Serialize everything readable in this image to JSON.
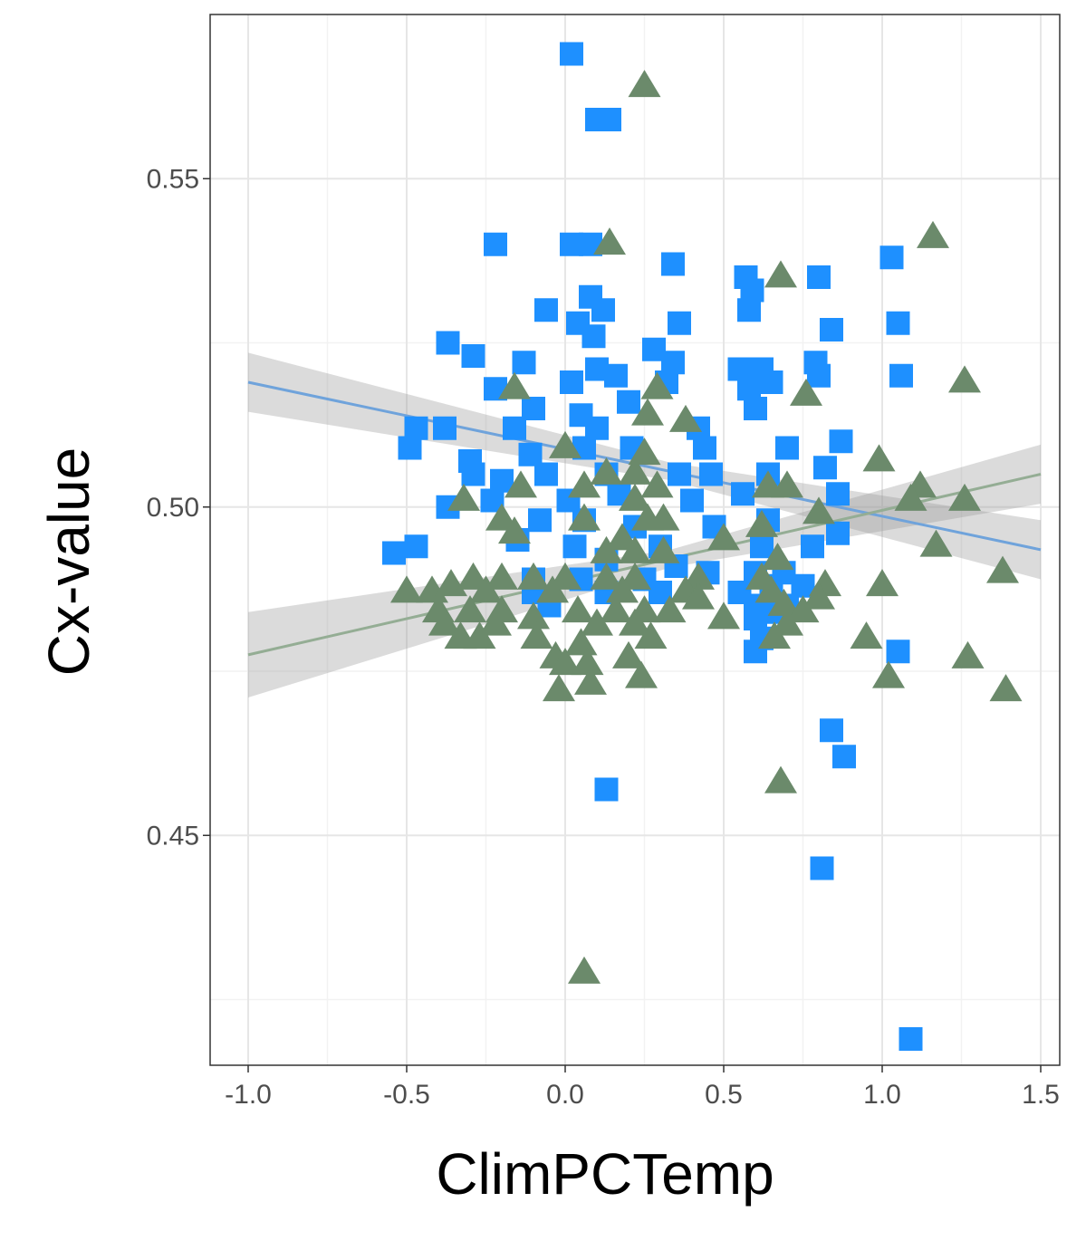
{
  "chart_data": {
    "type": "scatter",
    "title": "",
    "xlabel": "ClimPCTemp",
    "ylabel": "Cx-value",
    "xlim": [
      -1.12,
      1.56
    ],
    "ylim": [
      0.415,
      0.575
    ],
    "x_ticks": [
      -1.0,
      -0.5,
      0.0,
      0.5,
      1.0,
      1.5
    ],
    "x_tick_labels": [
      "-1.0",
      "-0.5",
      "0.0",
      "0.5",
      "1.0",
      "1.5"
    ],
    "y_ticks": [
      0.45,
      0.5,
      0.55
    ],
    "y_tick_labels": [
      "0.45",
      "0.50",
      "0.55"
    ],
    "grid": true,
    "legend": "none",
    "series": [
      {
        "marker": "square",
        "color": "#1E90FF",
        "fit": {
          "x": [
            -1.0,
            1.5
          ],
          "y": [
            0.519,
            0.4935
          ],
          "color": "#6FA3DB",
          "band_halfwidth": [
            0.0045,
            0.0045
          ]
        },
        "points": [
          [
            0.02,
            0.569
          ],
          [
            0.1,
            0.559
          ],
          [
            0.14,
            0.559
          ],
          [
            -0.22,
            0.54
          ],
          [
            0.02,
            0.54
          ],
          [
            0.08,
            0.54
          ],
          [
            0.34,
            0.537
          ],
          [
            0.57,
            0.535
          ],
          [
            0.59,
            0.533
          ],
          [
            0.8,
            0.535
          ],
          [
            1.03,
            0.538
          ],
          [
            1.05,
            0.528
          ],
          [
            0.08,
            0.532
          ],
          [
            0.04,
            0.528
          ],
          [
            -0.06,
            0.53
          ],
          [
            0.12,
            0.53
          ],
          [
            0.36,
            0.528
          ],
          [
            0.09,
            0.526
          ],
          [
            0.58,
            0.53
          ],
          [
            0.84,
            0.527
          ],
          [
            -0.37,
            0.525
          ],
          [
            -0.29,
            0.523
          ],
          [
            -0.13,
            0.522
          ],
          [
            0.1,
            0.521
          ],
          [
            0.28,
            0.524
          ],
          [
            0.34,
            0.522
          ],
          [
            0.55,
            0.521
          ],
          [
            0.62,
            0.521
          ],
          [
            0.79,
            0.522
          ],
          [
            1.06,
            0.52
          ],
          [
            -0.22,
            0.518
          ],
          [
            0.02,
            0.519
          ],
          [
            0.16,
            0.52
          ],
          [
            0.32,
            0.519
          ],
          [
            0.58,
            0.518
          ],
          [
            0.65,
            0.519
          ],
          [
            0.8,
            0.52
          ],
          [
            -0.1,
            0.515
          ],
          [
            0.05,
            0.514
          ],
          [
            0.2,
            0.516
          ],
          [
            -0.47,
            0.512
          ],
          [
            -0.38,
            0.512
          ],
          [
            -0.16,
            0.512
          ],
          [
            0.1,
            0.512
          ],
          [
            0.42,
            0.512
          ],
          [
            0.6,
            0.515
          ],
          [
            -0.49,
            0.509
          ],
          [
            -0.3,
            0.507
          ],
          [
            -0.11,
            0.508
          ],
          [
            0.06,
            0.509
          ],
          [
            0.21,
            0.509
          ],
          [
            0.44,
            0.509
          ],
          [
            0.7,
            0.509
          ],
          [
            0.87,
            0.51
          ],
          [
            -0.29,
            0.505
          ],
          [
            -0.2,
            0.504
          ],
          [
            -0.06,
            0.505
          ],
          [
            0.13,
            0.505
          ],
          [
            0.36,
            0.505
          ],
          [
            0.46,
            0.505
          ],
          [
            0.64,
            0.505
          ],
          [
            0.82,
            0.506
          ],
          [
            -0.37,
            0.5
          ],
          [
            -0.23,
            0.501
          ],
          [
            0.01,
            0.501
          ],
          [
            0.17,
            0.502
          ],
          [
            0.4,
            0.501
          ],
          [
            0.56,
            0.502
          ],
          [
            0.86,
            0.502
          ],
          [
            -0.08,
            0.498
          ],
          [
            0.06,
            0.498
          ],
          [
            0.22,
            0.497
          ],
          [
            0.47,
            0.497
          ],
          [
            0.64,
            0.498
          ],
          [
            0.86,
            0.496
          ],
          [
            -0.54,
            0.493
          ],
          [
            -0.47,
            0.494
          ],
          [
            -0.15,
            0.495
          ],
          [
            0.03,
            0.494
          ],
          [
            0.3,
            0.494
          ],
          [
            0.62,
            0.494
          ],
          [
            0.78,
            0.494
          ],
          [
            0.13,
            0.492
          ],
          [
            0.35,
            0.491
          ],
          [
            0.6,
            0.49
          ],
          [
            0.69,
            0.49
          ],
          [
            0.05,
            0.489
          ],
          [
            0.25,
            0.489
          ],
          [
            -0.1,
            0.489
          ],
          [
            0.45,
            0.49
          ],
          [
            0.65,
            0.488
          ],
          [
            0.75,
            0.488
          ],
          [
            -0.1,
            0.487
          ],
          [
            0.13,
            0.487
          ],
          [
            0.3,
            0.487
          ],
          [
            0.55,
            0.487
          ],
          [
            0.6,
            0.485
          ],
          [
            -0.05,
            0.485
          ],
          [
            0.6,
            0.483
          ],
          [
            0.65,
            0.484
          ],
          [
            0.7,
            0.485
          ],
          [
            0.62,
            0.48
          ],
          [
            0.6,
            0.478
          ],
          [
            1.05,
            0.478
          ],
          [
            0.84,
            0.466
          ],
          [
            0.88,
            0.462
          ],
          [
            0.13,
            0.457
          ],
          [
            0.81,
            0.445
          ],
          [
            1.09,
            0.419
          ]
        ]
      },
      {
        "marker": "triangle",
        "color": "#6B8A6B",
        "fit": {
          "x": [
            -1.0,
            1.5
          ],
          "y": [
            0.4775,
            0.505
          ],
          "color": "#94AD94",
          "band_halfwidth": [
            0.0065,
            0.0045
          ]
        },
        "points": [
          [
            0.25,
            0.564
          ],
          [
            0.14,
            0.54
          ],
          [
            1.16,
            0.541
          ],
          [
            0.68,
            0.535
          ],
          [
            -0.16,
            0.518
          ],
          [
            0.29,
            0.518
          ],
          [
            0.76,
            0.517
          ],
          [
            1.26,
            0.519
          ],
          [
            0.26,
            0.514
          ],
          [
            0.38,
            0.513
          ],
          [
            0.0,
            0.509
          ],
          [
            0.25,
            0.508
          ],
          [
            0.13,
            0.505
          ],
          [
            0.22,
            0.505
          ],
          [
            0.99,
            0.507
          ],
          [
            -0.14,
            0.503
          ],
          [
            -0.32,
            0.501
          ],
          [
            0.06,
            0.503
          ],
          [
            0.29,
            0.503
          ],
          [
            0.64,
            0.503
          ],
          [
            0.7,
            0.503
          ],
          [
            1.12,
            0.503
          ],
          [
            1.26,
            0.501
          ],
          [
            1.09,
            0.501
          ],
          [
            0.22,
            0.501
          ],
          [
            0.8,
            0.499
          ],
          [
            -0.2,
            0.498
          ],
          [
            0.06,
            0.498
          ],
          [
            0.26,
            0.498
          ],
          [
            0.31,
            0.498
          ],
          [
            0.62,
            0.497
          ],
          [
            -0.16,
            0.496
          ],
          [
            0.18,
            0.495
          ],
          [
            0.5,
            0.495
          ],
          [
            1.17,
            0.494
          ],
          [
            0.13,
            0.493
          ],
          [
            0.22,
            0.493
          ],
          [
            0.31,
            0.493
          ],
          [
            0.67,
            0.492
          ],
          [
            -0.5,
            0.487
          ],
          [
            -0.42,
            0.487
          ],
          [
            -0.36,
            0.488
          ],
          [
            -0.29,
            0.489
          ],
          [
            -0.2,
            0.489
          ],
          [
            -0.1,
            0.489
          ],
          [
            0.0,
            0.489
          ],
          [
            0.13,
            0.489
          ],
          [
            0.22,
            0.489
          ],
          [
            0.42,
            0.489
          ],
          [
            0.62,
            0.489
          ],
          [
            0.82,
            0.488
          ],
          [
            1.0,
            0.488
          ],
          [
            1.38,
            0.49
          ],
          [
            -0.25,
            0.487
          ],
          [
            -0.04,
            0.487
          ],
          [
            0.18,
            0.487
          ],
          [
            0.38,
            0.487
          ],
          [
            0.65,
            0.487
          ],
          [
            0.8,
            0.486
          ],
          [
            -0.4,
            0.484
          ],
          [
            -0.3,
            0.484
          ],
          [
            -0.2,
            0.484
          ],
          [
            -0.1,
            0.483
          ],
          [
            0.04,
            0.484
          ],
          [
            0.16,
            0.484
          ],
          [
            0.25,
            0.484
          ],
          [
            0.33,
            0.484
          ],
          [
            0.42,
            0.486
          ],
          [
            0.69,
            0.485
          ],
          [
            0.75,
            0.484
          ],
          [
            -0.38,
            0.482
          ],
          [
            -0.22,
            0.482
          ],
          [
            0.1,
            0.482
          ],
          [
            0.22,
            0.482
          ],
          [
            0.5,
            0.483
          ],
          [
            0.7,
            0.482
          ],
          [
            -0.33,
            0.48
          ],
          [
            -0.27,
            0.48
          ],
          [
            -0.09,
            0.48
          ],
          [
            0.05,
            0.479
          ],
          [
            0.27,
            0.48
          ],
          [
            0.66,
            0.48
          ],
          [
            0.95,
            0.48
          ],
          [
            -0.03,
            0.477
          ],
          [
            0.2,
            0.477
          ],
          [
            1.27,
            0.477
          ],
          [
            0.0,
            0.476
          ],
          [
            0.07,
            0.476
          ],
          [
            0.24,
            0.474
          ],
          [
            1.02,
            0.474
          ],
          [
            -0.02,
            0.472
          ],
          [
            0.08,
            0.473
          ],
          [
            1.39,
            0.472
          ],
          [
            0.68,
            0.458
          ],
          [
            0.06,
            0.429
          ]
        ]
      }
    ]
  }
}
